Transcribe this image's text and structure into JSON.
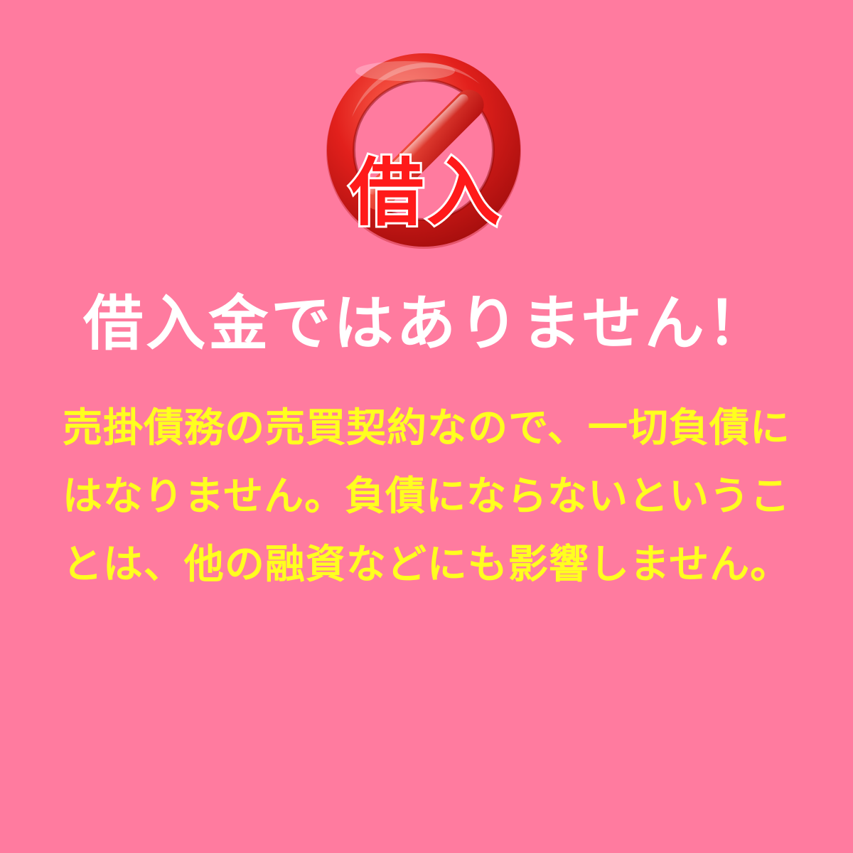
{
  "background_color": "#ff7b9f",
  "badge": {
    "icon": "prohibition-icon",
    "label": "借入",
    "ring_color": "#e2201c",
    "label_color": "#ff1a1a"
  },
  "headline": {
    "text": "借入金ではありません！",
    "color": "#ffffff"
  },
  "body": {
    "color": "#ffff1f",
    "lines": [
      "売掛債務の売買契約なので、一切負債に",
      "はなりません。負債にならないというこ",
      "とは、他の融資などにも影響しません。"
    ]
  }
}
